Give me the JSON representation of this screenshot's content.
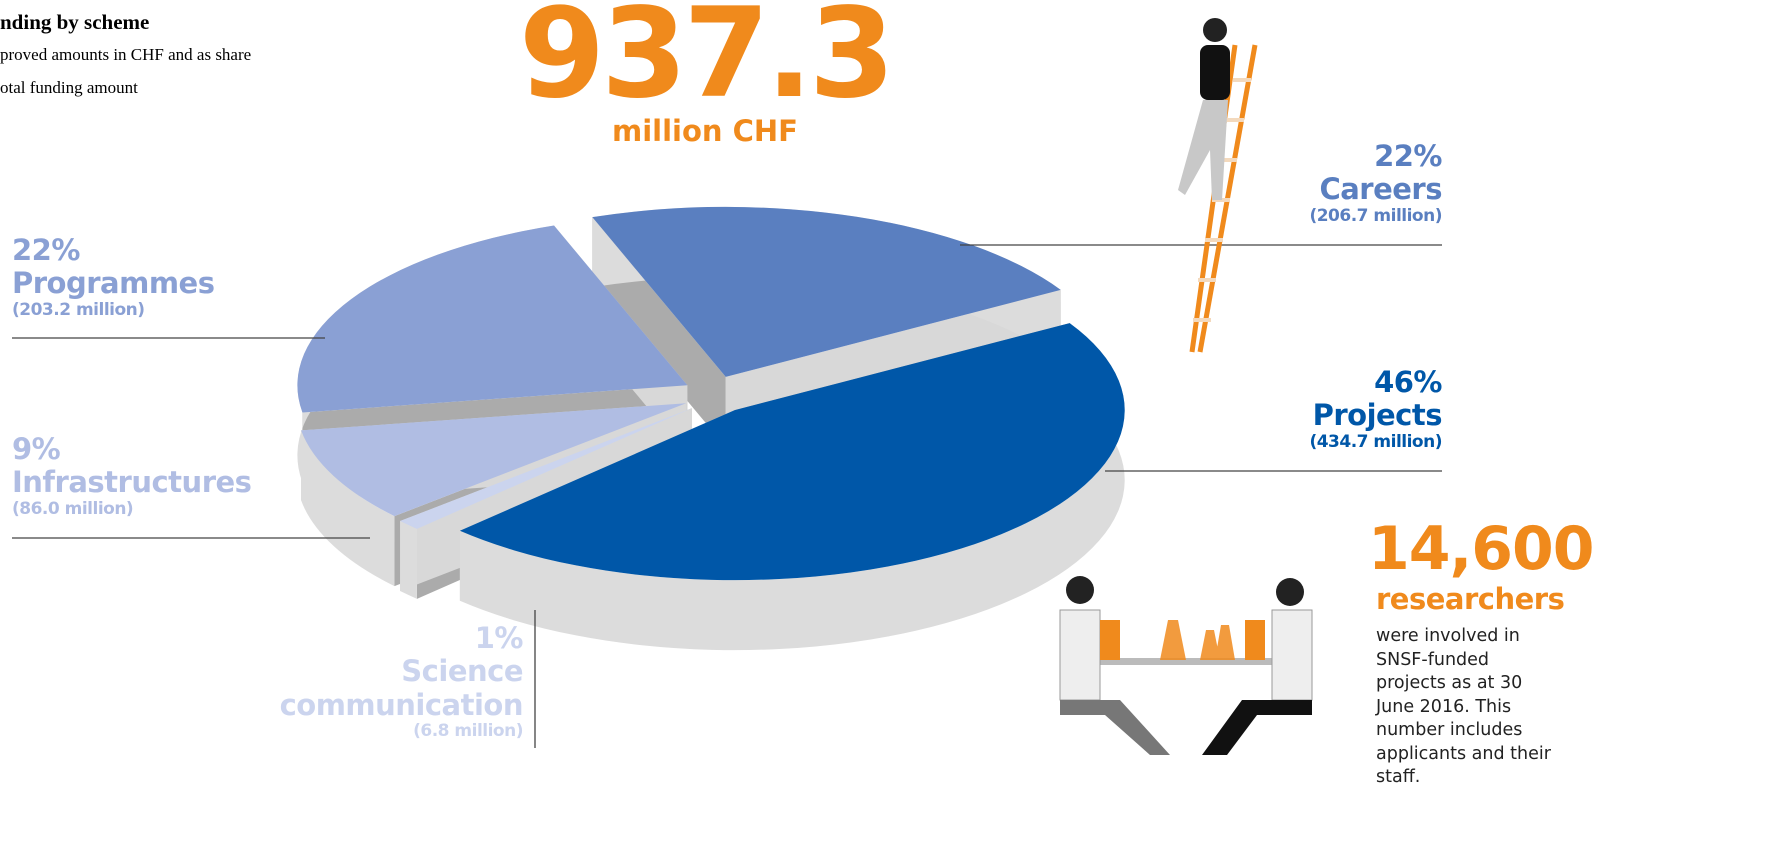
{
  "chart_data": {
    "type": "pie",
    "title": "nding by scheme",
    "subtitle": [
      "proved amounts in CHF and as share",
      "otal funding amount"
    ],
    "total": 937.3,
    "total_unit": "million CHF",
    "categories": [
      "Careers",
      "Projects",
      "Science communication",
      "Infrastructures",
      "Programmes"
    ],
    "values": [
      22,
      46,
      1,
      9,
      22
    ],
    "value_labels": [
      "22%",
      "46%",
      "1%",
      "9%",
      "22%"
    ],
    "amounts": [
      206.7,
      434.7,
      6.8,
      86.0,
      203.2
    ],
    "amount_labels": [
      "(206.7 million)",
      "(434.7 million)",
      "(6.8 million)",
      "(86.0 million)",
      "(203.2 million)"
    ],
    "colors": [
      "#5a7fc0",
      "#0057a8",
      "#cbd4ee",
      "#b0bde3",
      "#8aa0d4"
    ]
  },
  "callout": {
    "count": "14,600",
    "unit": "researchers",
    "text": "were involved in SNSF-funded projects as at 30 June 2016. This number includes applicants and their staff."
  }
}
